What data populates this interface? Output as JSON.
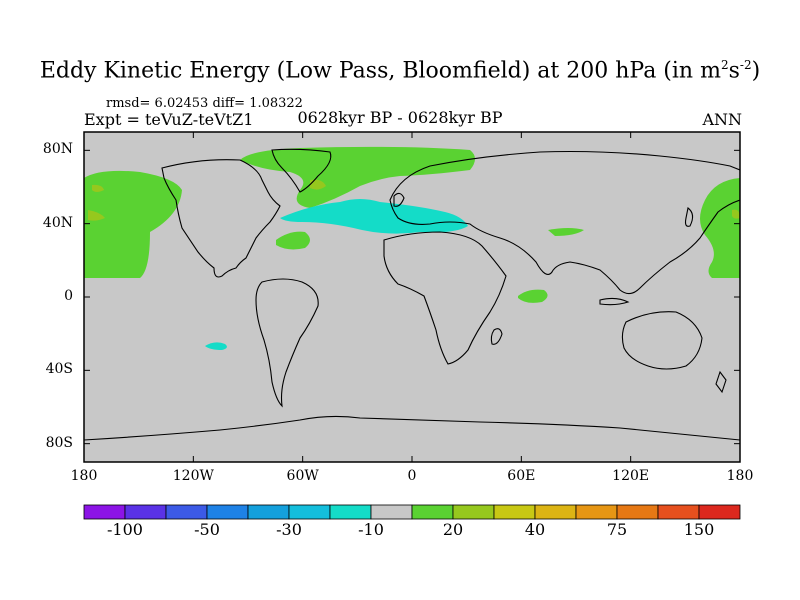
{
  "title": {
    "main": "Eddy Kinetic Energy (Low Pass, Bloomfield) at 200 hPa (in m",
    "sup1": "2",
    "mid": "s",
    "sup2": "-2",
    "close": ")"
  },
  "stats": "rmsd= 6.02453 diff= 1.08322",
  "experiment": "Expt = teVuZ-teVtZ1",
  "period": "0628kyr BP - 0628kyr BP",
  "season": "ANN",
  "axes": {
    "lat_labels": [
      "80N",
      "40N",
      "0",
      "40S",
      "80S"
    ],
    "lat_values": [
      80,
      40,
      0,
      -40,
      -80
    ],
    "lon_labels": [
      "180",
      "120W",
      "60W",
      "0",
      "60E",
      "120E",
      "180"
    ],
    "lon_values": [
      -180,
      -120,
      -60,
      0,
      60,
      120,
      180
    ]
  },
  "colorbar": {
    "colors": [
      "#8c14e6",
      "#5a32e6",
      "#3c5ae6",
      "#1e82e6",
      "#14a0dc",
      "#14bedc",
      "#14dcc8",
      "#c8c8c8",
      "#5ad232",
      "#96c81e",
      "#c8c814",
      "#dcb414",
      "#e69614",
      "#e67814",
      "#e6501e",
      "#dc281e"
    ],
    "labels": [
      "-100",
      "-50",
      "-30",
      "-10",
      "20",
      "40",
      "75",
      "150"
    ],
    "label_boundary_index": [
      2,
      4,
      6,
      8,
      10,
      12,
      14,
      16
    ]
  },
  "background_color": "#c8c8c8",
  "anomaly_regions": [
    {
      "name": "north-pacific-east",
      "color": "#5ad232"
    },
    {
      "name": "north-pacific-west",
      "color": "#5ad232"
    },
    {
      "name": "north-atlantic-greenland",
      "color": "#5ad232"
    },
    {
      "name": "north-atlantic-jet",
      "color": "#14dcc8"
    },
    {
      "name": "west-atlantic",
      "color": "#5ad232"
    },
    {
      "name": "arabian-sea",
      "color": "#5ad232"
    },
    {
      "name": "china-sea",
      "color": "#5ad232"
    },
    {
      "name": "south-pacific",
      "color": "#14dcc8"
    }
  ]
}
